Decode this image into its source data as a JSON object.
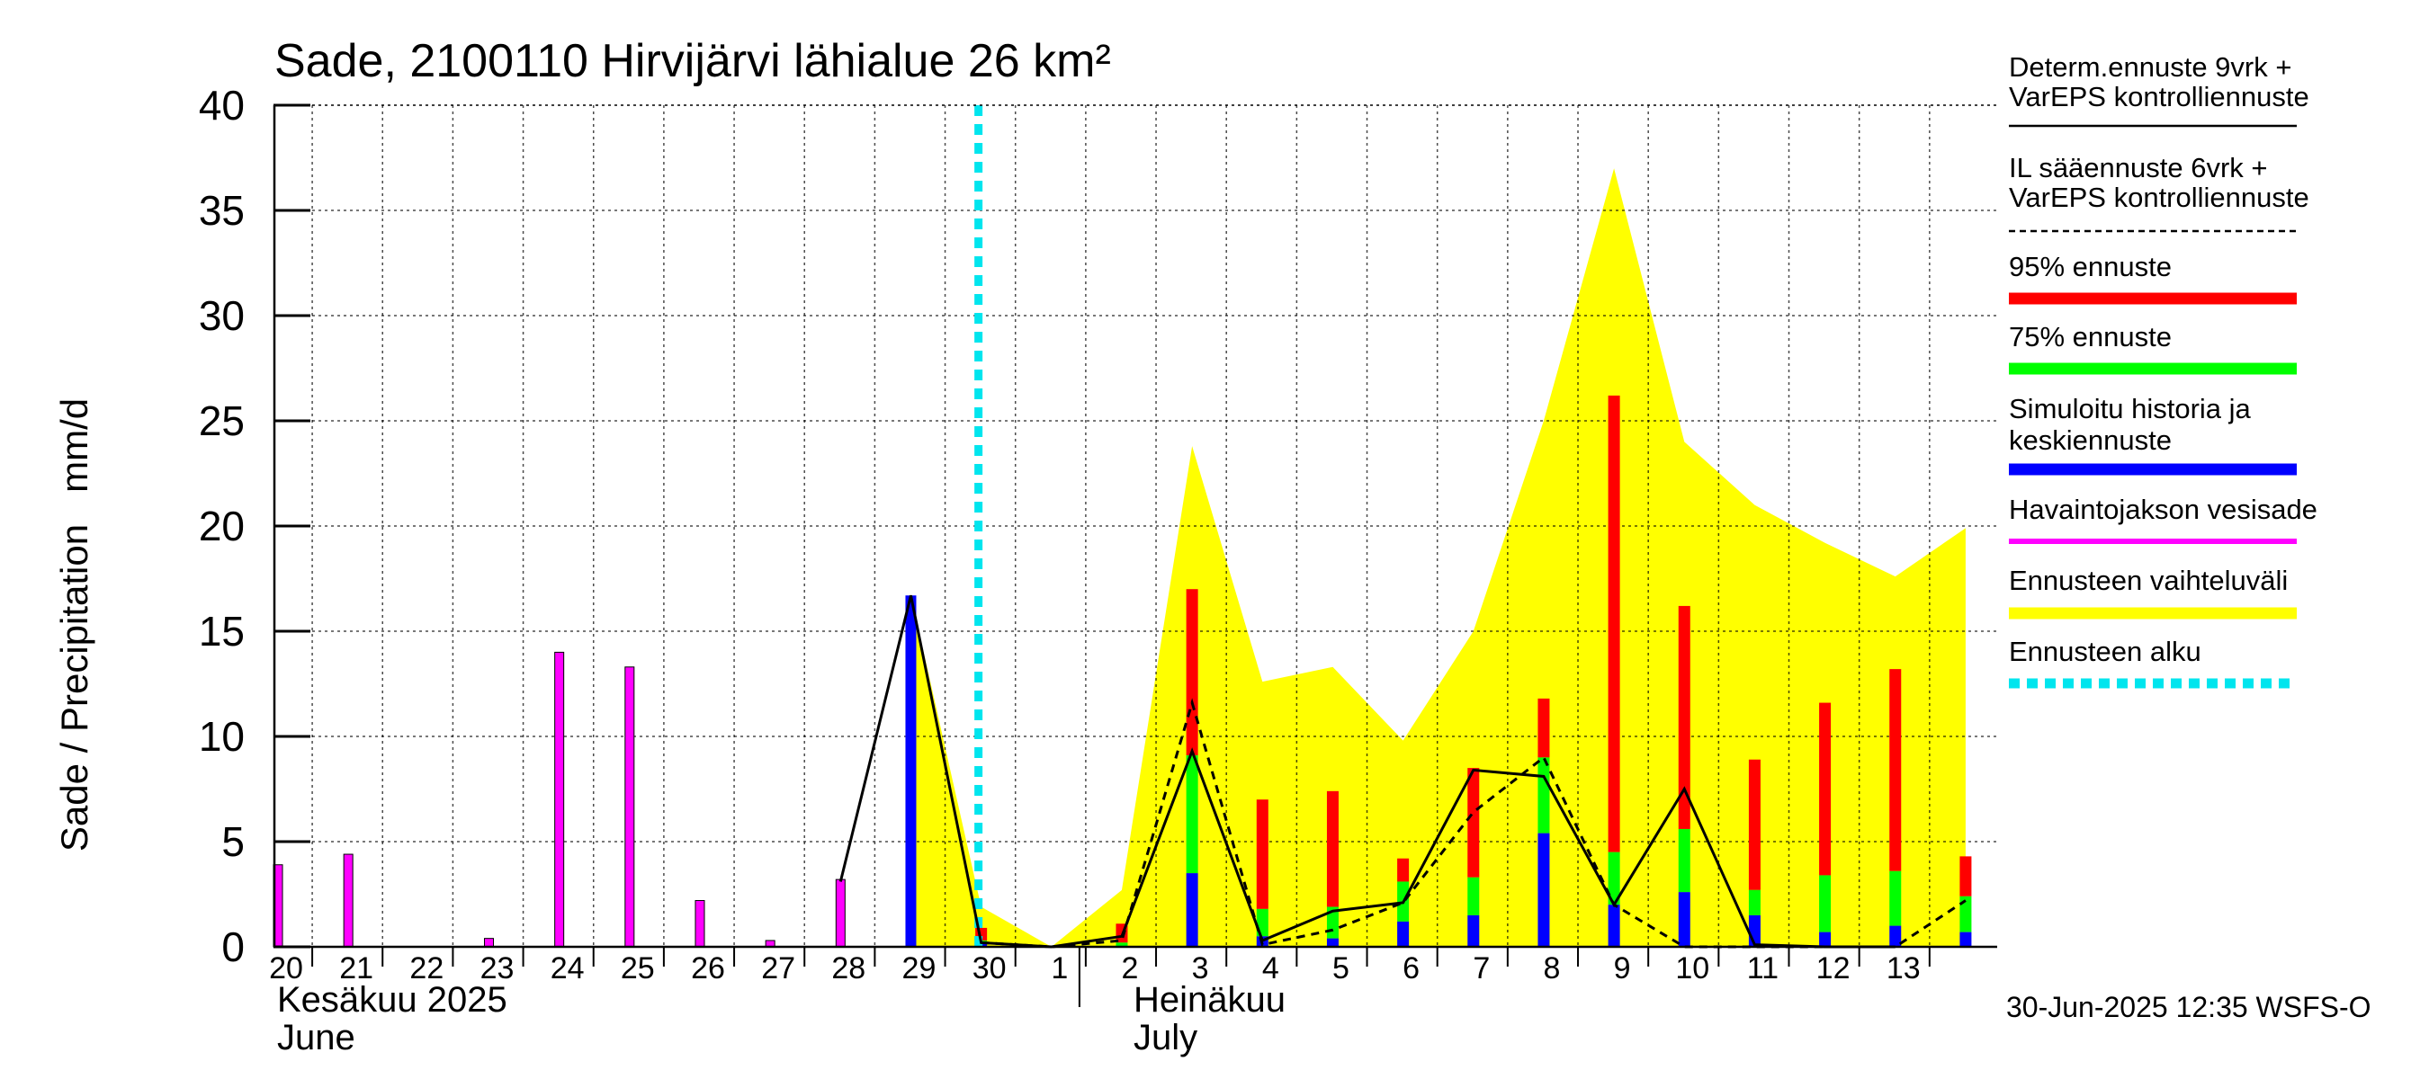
{
  "chart_data": {
    "type": "bar",
    "title": "Sade, 2100110 Hirvijärvi lähialue 26 km²",
    "ylabel": "Sade / Precipitation   mm/d",
    "ylim": [
      0,
      40
    ],
    "yticks": [
      0,
      5,
      10,
      15,
      20,
      25,
      30,
      35,
      40
    ],
    "grid": true,
    "legend_position": "right",
    "days": [
      "20",
      "21",
      "22",
      "23",
      "24",
      "25",
      "26",
      "27",
      "28",
      "29",
      "30",
      "1",
      "2",
      "3",
      "4",
      "5",
      "6",
      "7",
      "8",
      "9",
      "10",
      "11",
      "12",
      "13"
    ],
    "months": [
      {
        "line1": "Kesäkuu  2025",
        "line2": "June"
      },
      {
        "line1": "Heinäkuu",
        "line2": "July"
      }
    ],
    "forecast_start_day": "30",
    "observed_precipitation": {
      "name": "Havaintojakson vesisade",
      "color": "#ff00ff",
      "values": [
        3.9,
        4.4,
        0,
        0.4,
        14.0,
        13.3,
        2.2,
        0.3,
        3.2,
        null,
        null
      ]
    },
    "simulated_history": {
      "name": "Simuloitu historia ja keskiennuste",
      "color": "#0000ff",
      "values": [
        null,
        null,
        null,
        null,
        null,
        null,
        null,
        null,
        null,
        16.7,
        0.2
      ]
    },
    "forecast_bars": [
      {
        "day": "30",
        "p50": 0.2,
        "p75": 0.3,
        "p95": 0.9
      },
      {
        "day": "2",
        "p50": 0.0,
        "p75": 0.2,
        "p95": 1.1
      },
      {
        "day": "3",
        "p50": 3.5,
        "p75": 9.1,
        "p95": 17.0
      },
      {
        "day": "4",
        "p50": 0.5,
        "p75": 1.8,
        "p95": 7.0
      },
      {
        "day": "5",
        "p50": 0.4,
        "p75": 1.9,
        "p95": 7.4
      },
      {
        "day": "6",
        "p50": 1.2,
        "p75": 3.1,
        "p95": 4.2
      },
      {
        "day": "7",
        "p50": 1.5,
        "p75": 3.3,
        "p95": 8.5
      },
      {
        "day": "8",
        "p50": 5.4,
        "p75": 9.0,
        "p95": 11.8
      },
      {
        "day": "9",
        "p50": 2.0,
        "p75": 4.5,
        "p95": 26.2
      },
      {
        "day": "10",
        "p50": 2.6,
        "p75": 5.6,
        "p95": 16.2
      },
      {
        "day": "11",
        "p50": 1.5,
        "p75": 2.7,
        "p95": 8.9
      },
      {
        "day": "12",
        "p50": 0.7,
        "p75": 3.4,
        "p95": 11.6
      },
      {
        "day": "13",
        "p50": 1.0,
        "p75": 3.6,
        "p95": 13.2
      },
      {
        "day": "14",
        "p50": 0.7,
        "p75": 2.4,
        "p95": 4.3
      }
    ],
    "determ_line": {
      "name": "Determ.ennuste 9vrk + VarEPS kontrolliennuste",
      "points": [
        [
          "28",
          3.1
        ],
        [
          "29",
          16.7
        ],
        [
          "30",
          0.2
        ],
        [
          "1",
          0
        ],
        [
          "2",
          0.5
        ],
        [
          "3",
          9.3
        ],
        [
          "4",
          0.3
        ],
        [
          "5",
          1.7
        ],
        [
          "6",
          2.1
        ],
        [
          "7",
          8.4
        ],
        [
          "8",
          8.1
        ],
        [
          "9",
          2.0
        ],
        [
          "10",
          7.5
        ],
        [
          "11",
          0.1
        ],
        [
          "12",
          0.0
        ],
        [
          "13",
          0.0
        ]
      ]
    },
    "il_line": {
      "name": "IL sääennuste 6vrk + VarEPS kontrolliennuste",
      "points": [
        [
          "30",
          0.2
        ],
        [
          "1",
          0
        ],
        [
          "2",
          0.3
        ],
        [
          "3",
          11.6
        ],
        [
          "4",
          0.1
        ],
        [
          "5",
          0.8
        ],
        [
          "6",
          2.1
        ],
        [
          "7",
          6.4
        ],
        [
          "8",
          9.0
        ],
        [
          "9",
          2.0
        ],
        [
          "10",
          0
        ],
        [
          "11",
          0
        ],
        [
          "12",
          0
        ],
        [
          "13",
          0
        ],
        [
          "14",
          2.2
        ]
      ]
    },
    "range_band": {
      "name": "Ennusteen vaihteluväli",
      "color": "#ffff00",
      "points": [
        [
          "29",
          16.7
        ],
        [
          "30",
          1.9
        ],
        [
          "1",
          0
        ],
        [
          "2",
          2.7
        ],
        [
          "3",
          23.8
        ],
        [
          "4",
          12.6
        ],
        [
          "5",
          13.3
        ],
        [
          "6",
          9.8
        ],
        [
          "7",
          15.0
        ],
        [
          "8",
          25.0
        ],
        [
          "9",
          37.0
        ],
        [
          "10",
          24.0
        ],
        [
          "11",
          21.0
        ],
        [
          "12",
          19.2
        ],
        [
          "13",
          17.6
        ],
        [
          "14",
          19.9
        ]
      ]
    },
    "legend": [
      {
        "label1": "Determ.ennuste 9vrk +",
        "label2": "VarEPS kontrolliennuste",
        "style": "solid-thin",
        "color": "#000000"
      },
      {
        "label1": "IL sääennuste 6vrk  +",
        "label2": "  VarEPS kontrolliennuste",
        "style": "dashed-thin",
        "color": "#000000"
      },
      {
        "label1": "95% ennuste",
        "label2": "",
        "style": "thick",
        "color": "#ff0000"
      },
      {
        "label1": "75% ennuste",
        "label2": "",
        "style": "thick",
        "color": "#00ff00"
      },
      {
        "label1": "Simuloitu historia ja",
        "label2": "keskiennuste",
        "style": "thick",
        "color": "#0000ff"
      },
      {
        "label1": "Havaintojakson vesisade",
        "label2": "",
        "style": "medium",
        "color": "#ff00ff"
      },
      {
        "label1": "Ennusteen vaihteluväli",
        "label2": "",
        "style": "thick",
        "color": "#ffff00"
      },
      {
        "label1": "Ennusteen alku",
        "label2": "",
        "style": "dashed-thick",
        "color": "#00e5ee"
      }
    ]
  },
  "footer": "30-Jun-2025 12:35 WSFS-O"
}
